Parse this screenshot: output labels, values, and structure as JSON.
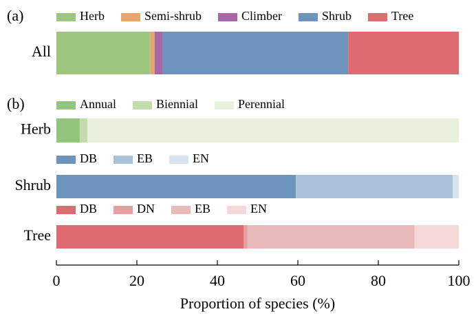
{
  "chart_data": [
    {
      "type": "bar",
      "orientation": "horizontal",
      "stacked": true,
      "panel_label": "(a)",
      "categories": [
        "All"
      ],
      "xlim": [
        0,
        100
      ],
      "series": [
        {
          "name": "Herb",
          "color": "#9dc77e",
          "values": [
            23.4
          ]
        },
        {
          "name": "Semi-shrub",
          "color": "#e8a46a",
          "values": [
            1.0
          ]
        },
        {
          "name": "Climber",
          "color": "#a865a8",
          "values": [
            2.0
          ]
        },
        {
          "name": "Shrub",
          "color": "#6d94bd",
          "values": [
            46.1
          ]
        },
        {
          "name": "Tree",
          "color": "#dd6b6f",
          "values": [
            27.5
          ]
        }
      ]
    },
    {
      "type": "bar",
      "orientation": "horizontal",
      "stacked": true,
      "panel_label": "(b)",
      "categories": [
        "Herb"
      ],
      "xlim": [
        0,
        100
      ],
      "series": [
        {
          "name": "Annual",
          "color": "#93c47d",
          "values": [
            5.8
          ]
        },
        {
          "name": "Biennial",
          "color": "#c3dcae",
          "values": [
            1.9
          ]
        },
        {
          "name": "Perennial",
          "color": "#e9f0dc",
          "values": [
            92.3
          ]
        }
      ]
    },
    {
      "type": "bar",
      "orientation": "horizontal",
      "stacked": true,
      "categories": [
        "Shrub"
      ],
      "xlim": [
        0,
        100
      ],
      "series": [
        {
          "name": "DB",
          "color": "#6d94bd",
          "values": [
            59.5
          ]
        },
        {
          "name": "EB",
          "color": "#a9c1d9",
          "values": [
            39.0
          ]
        },
        {
          "name": "EN",
          "color": "#d9e3ef",
          "values": [
            1.5
          ]
        }
      ]
    },
    {
      "type": "bar",
      "orientation": "horizontal",
      "stacked": true,
      "categories": [
        "Tree"
      ],
      "xlim": [
        0,
        100
      ],
      "xticks": [
        0,
        20,
        40,
        60,
        80,
        100
      ],
      "xlabel": "Proportion of species (%)",
      "series": [
        {
          "name": "DB",
          "color": "#dd6b6f",
          "values": [
            46.5
          ]
        },
        {
          "name": "DN",
          "color": "#e99ea0",
          "values": [
            1.0
          ]
        },
        {
          "name": "EB",
          "color": "#eababa",
          "values": [
            41.5
          ]
        },
        {
          "name": "EN",
          "color": "#f5d9d9",
          "values": [
            11.0
          ]
        }
      ]
    }
  ]
}
